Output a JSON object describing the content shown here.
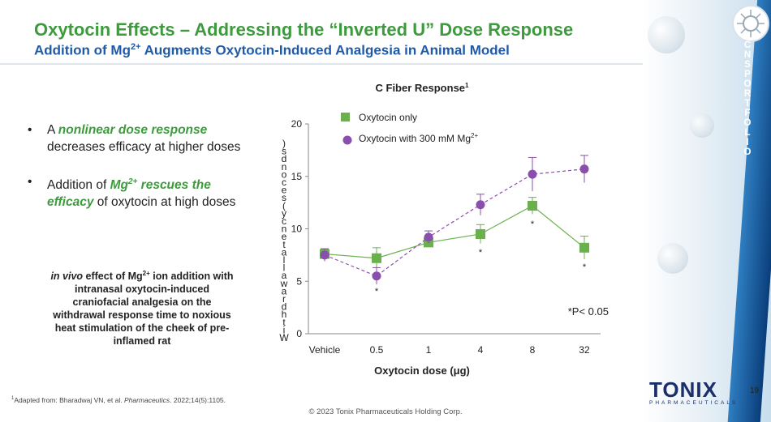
{
  "slide": {
    "title": "Oxytocin Effects – Addressing the “Inverted U” Dose Response",
    "subtitle_pre": "Addition of Mg",
    "subtitle_sup": "2+",
    "subtitle_post": " Augments Oxytocin-Induced Analgesia in Animal Model",
    "page_number": "19",
    "copyright": "© 2023 Tonix Pharmaceuticals Holding Corp.",
    "vertical_label": "CNS PORTFOLIO"
  },
  "bullets": [
    {
      "marker": "•",
      "pre": "A ",
      "emph": "nonlinear dose response",
      "post": " decreases efficacy at higher doses"
    },
    {
      "marker": "•",
      "pre": "Addition of ",
      "emph": "Mg",
      "emph_sup": "2+",
      "emph2": " rescues the efficacy",
      "post": " of oxytocin at high doses"
    }
  ],
  "invivo": {
    "italic": "in vivo",
    "text1": " effect of Mg",
    "sup": "2+",
    "text2": " ion addition with intranasal oxytocin-induced craniofacial analgesia on the withdrawal response time to noxious heat stimulation of the cheek of pre-inflamed rat"
  },
  "footnote": {
    "sup": "1",
    "text": "Adapted from: Bharadwaj VN, et al. ",
    "journal": "Pharmaceutics",
    "rest": ". 2022;14(5):1105."
  },
  "logo": {
    "word": "TONIX",
    "tagline": "PHARMACEUTICALS"
  },
  "chart_data": {
    "type": "line",
    "title": "C Fiber Response",
    "title_sup": "1",
    "xlabel": "Oxytocin dose (μg)",
    "ylabel": "Withdrawal latency (seconds)",
    "categories": [
      "Vehicle",
      "0.5",
      "1",
      "4",
      "8",
      "32"
    ],
    "ylim": [
      0,
      20
    ],
    "yticks": [
      0,
      5,
      10,
      15,
      20
    ],
    "grid": false,
    "legend_position": "top-left",
    "annotation": "*P< 0.05",
    "series": [
      {
        "name": "Oxytocin only",
        "marker": "square",
        "color": "#6ab04c",
        "values": [
          7.6,
          7.2,
          8.7,
          9.5,
          12.2,
          8.2
        ],
        "errors": [
          0.5,
          1.0,
          0.4,
          0.9,
          0.8,
          1.1
        ]
      },
      {
        "name": "Oxytocin with 300 mM Mg",
        "name_sup": "2+",
        "marker": "circle",
        "color": "#8a4fad",
        "values": [
          7.5,
          5.5,
          9.2,
          12.3,
          15.2,
          15.7
        ],
        "errors": [
          0.6,
          0.8,
          0.6,
          1.0,
          1.6,
          1.3
        ]
      }
    ],
    "significance": [
      {
        "category": "0.5",
        "y": 4.1,
        "label": "*"
      },
      {
        "category": "4",
        "y": 7.8,
        "label": "*"
      },
      {
        "category": "8",
        "y": 10.5,
        "label": "*"
      },
      {
        "category": "32",
        "y": 6.4,
        "label": "*"
      }
    ]
  }
}
